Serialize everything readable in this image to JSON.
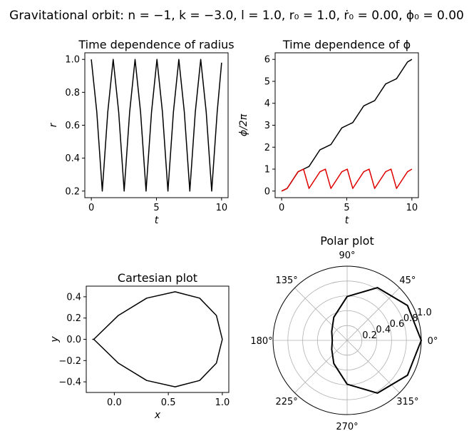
{
  "figure": {
    "title": "Gravitational orbit:   n = −1,  k = −3.0,  l = 1.0,  r₀ = 1.0,  ṙ₀ = 0.00,  ϕ₀ = 0.00"
  },
  "colors": {
    "line": "#000000",
    "wrapped_phi": "#e00000",
    "grid": "#b0b0b0"
  },
  "chart_data": [
    {
      "id": "radius",
      "type": "line",
      "title": "Time dependence of radius",
      "xlabel": "t",
      "ylabel": "r",
      "xlim": [
        -0.5,
        10.5
      ],
      "ylim": [
        0.16,
        1.04
      ],
      "xticks": [
        "0",
        "5",
        "10"
      ],
      "yticks": [
        "0.2",
        "0.4",
        "0.6",
        "0.8",
        "1.0"
      ],
      "grid": false,
      "series": [
        {
          "x": [
            0,
            0.42,
            0.84,
            1.26,
            1.68,
            2.1,
            2.52,
            2.94,
            3.36,
            3.78,
            4.2,
            4.62,
            5.04,
            5.46,
            5.88,
            6.3,
            6.72,
            7.14,
            7.56,
            7.98,
            8.4,
            8.82,
            9.24,
            9.66,
            10.0
          ],
          "y": [
            1.0,
            0.68,
            0.2,
            0.68,
            1.0,
            0.68,
            0.2,
            0.68,
            1.0,
            0.68,
            0.2,
            0.68,
            1.0,
            0.68,
            0.2,
            0.68,
            1.0,
            0.68,
            0.2,
            0.68,
            1.0,
            0.68,
            0.2,
            0.68,
            0.98
          ]
        }
      ]
    },
    {
      "id": "phi",
      "type": "line",
      "title": "Time dependence of ϕ",
      "xlabel": "t",
      "ylabel": "ϕ/2π",
      "xlim": [
        -0.5,
        10.5
      ],
      "ylim": [
        -0.3,
        6.3
      ],
      "xticks": [
        "0",
        "5",
        "10"
      ],
      "yticks": [
        "0",
        "1",
        "2",
        "3",
        "4",
        "5",
        "6"
      ],
      "grid": false,
      "series": [
        {
          "x": [
            0,
            0.42,
            0.84,
            1.26,
            1.68,
            2.1,
            2.52,
            2.94,
            3.36,
            3.78,
            4.2,
            4.62,
            5.04,
            5.46,
            5.88,
            6.3,
            6.72,
            7.14,
            7.56,
            7.98,
            8.4,
            8.82,
            9.24,
            9.66,
            10.0
          ],
          "y": [
            0,
            0.12,
            0.5,
            0.88,
            1.0,
            1.12,
            1.5,
            1.88,
            2.0,
            2.12,
            2.5,
            2.88,
            3.0,
            3.12,
            3.5,
            3.88,
            4.0,
            4.12,
            4.5,
            4.88,
            5.0,
            5.12,
            5.5,
            5.88,
            6.0
          ]
        },
        {
          "x": [
            0,
            0.42,
            0.84,
            1.26,
            1.68,
            2.1,
            2.52,
            2.94,
            3.36,
            3.78,
            4.2,
            4.62,
            5.04,
            5.46,
            5.88,
            6.3,
            6.72,
            7.14,
            7.56,
            7.98,
            8.4,
            8.82,
            9.24,
            9.66,
            10.0
          ],
          "y": [
            0,
            0.12,
            0.5,
            0.88,
            1.0,
            0.12,
            0.5,
            0.88,
            1.0,
            0.12,
            0.5,
            0.88,
            1.0,
            0.12,
            0.5,
            0.88,
            1.0,
            0.12,
            0.5,
            0.88,
            1.0,
            0.12,
            0.5,
            0.88,
            1.0
          ]
        }
      ]
    },
    {
      "id": "cartesian",
      "type": "line",
      "title": "Cartesian plot",
      "xlabel": "x",
      "ylabel": "y",
      "xlim": [
        -0.26,
        1.06
      ],
      "ylim": [
        -0.5,
        0.5
      ],
      "xticks": [
        "0.0",
        "0.5",
        "1.0"
      ],
      "yticks": [
        "−0.4",
        "−0.2",
        "0.0",
        "0.2",
        "0.4"
      ],
      "grid": false,
      "series": [
        {
          "x": [
            1.0,
            0.945,
            0.79,
            0.563,
            0.3,
            0.037,
            -0.19,
            -0.2,
            -0.19,
            0.037,
            0.3,
            0.563,
            0.79,
            0.945,
            1.0
          ],
          "y": [
            0.0,
            0.224,
            0.387,
            0.447,
            0.387,
            0.224,
            0.0,
            0.0,
            0.0,
            -0.224,
            -0.387,
            -0.447,
            -0.387,
            -0.224,
            0.0
          ]
        }
      ]
    },
    {
      "id": "polar",
      "type": "line",
      "title": "Polar plot",
      "rlim": [
        0,
        1.0
      ],
      "rticks": [
        "0.2",
        "0.4",
        "0.6",
        "0.8",
        "1.0"
      ],
      "thetaticks": [
        "0°",
        "45°",
        "90°",
        "135°",
        "180°",
        "225°",
        "270°",
        "315°"
      ],
      "grid": true,
      "series": [
        {
          "theta_deg": [
            0,
            30,
            60,
            90,
            120,
            150,
            180,
            210,
            240,
            270,
            300,
            330,
            360
          ],
          "r": [
            1.0,
            0.94,
            0.82,
            0.59,
            0.36,
            0.24,
            0.2,
            0.24,
            0.36,
            0.59,
            0.82,
            0.94,
            1.0
          ]
        }
      ]
    }
  ]
}
